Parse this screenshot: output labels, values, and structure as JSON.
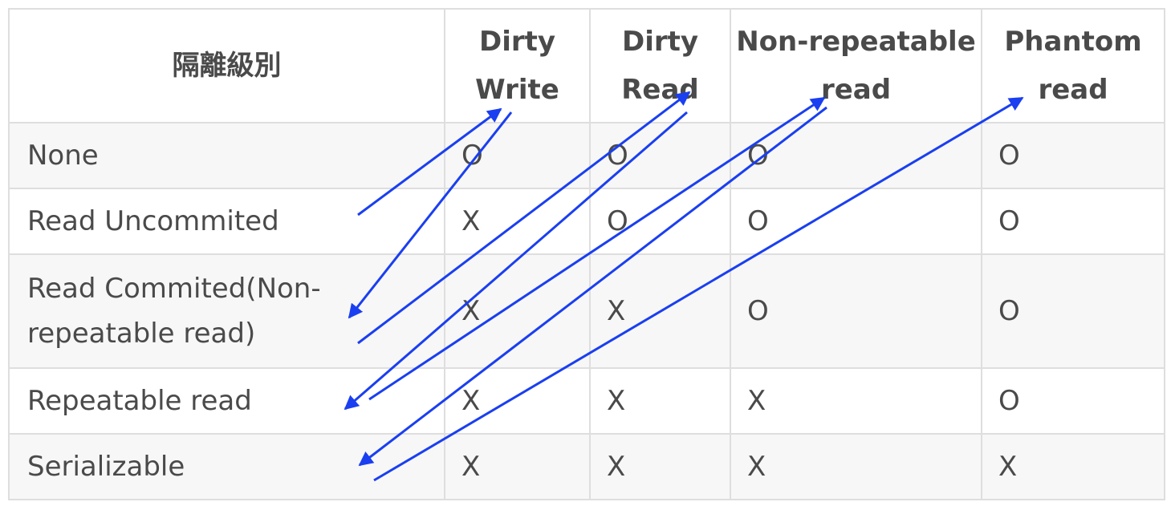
{
  "table": {
    "headers": [
      "隔離級別",
      "Dirty Write",
      "Dirty Read",
      "Non-repeatable read",
      "Phantom read"
    ],
    "rows": [
      {
        "level": "None",
        "cells": [
          "O",
          "O",
          "O",
          "O"
        ]
      },
      {
        "level": "Read Uncommited",
        "cells": [
          "X",
          "O",
          "O",
          "O"
        ]
      },
      {
        "level": "Read Commited(Non-repeatable read)",
        "cells": [
          "X",
          "X",
          "O",
          "O"
        ]
      },
      {
        "level": "Repeatable read",
        "cells": [
          "X",
          "X",
          "X",
          "O"
        ]
      },
      {
        "level": "Serializable",
        "cells": [
          "X",
          "X",
          "X",
          "X"
        ]
      }
    ]
  },
  "colors": {
    "annotation_arrow": "#1a3ff0",
    "border": "#dedede",
    "row_alt": "#f7f7f7",
    "text": "#4a4a4a"
  }
}
